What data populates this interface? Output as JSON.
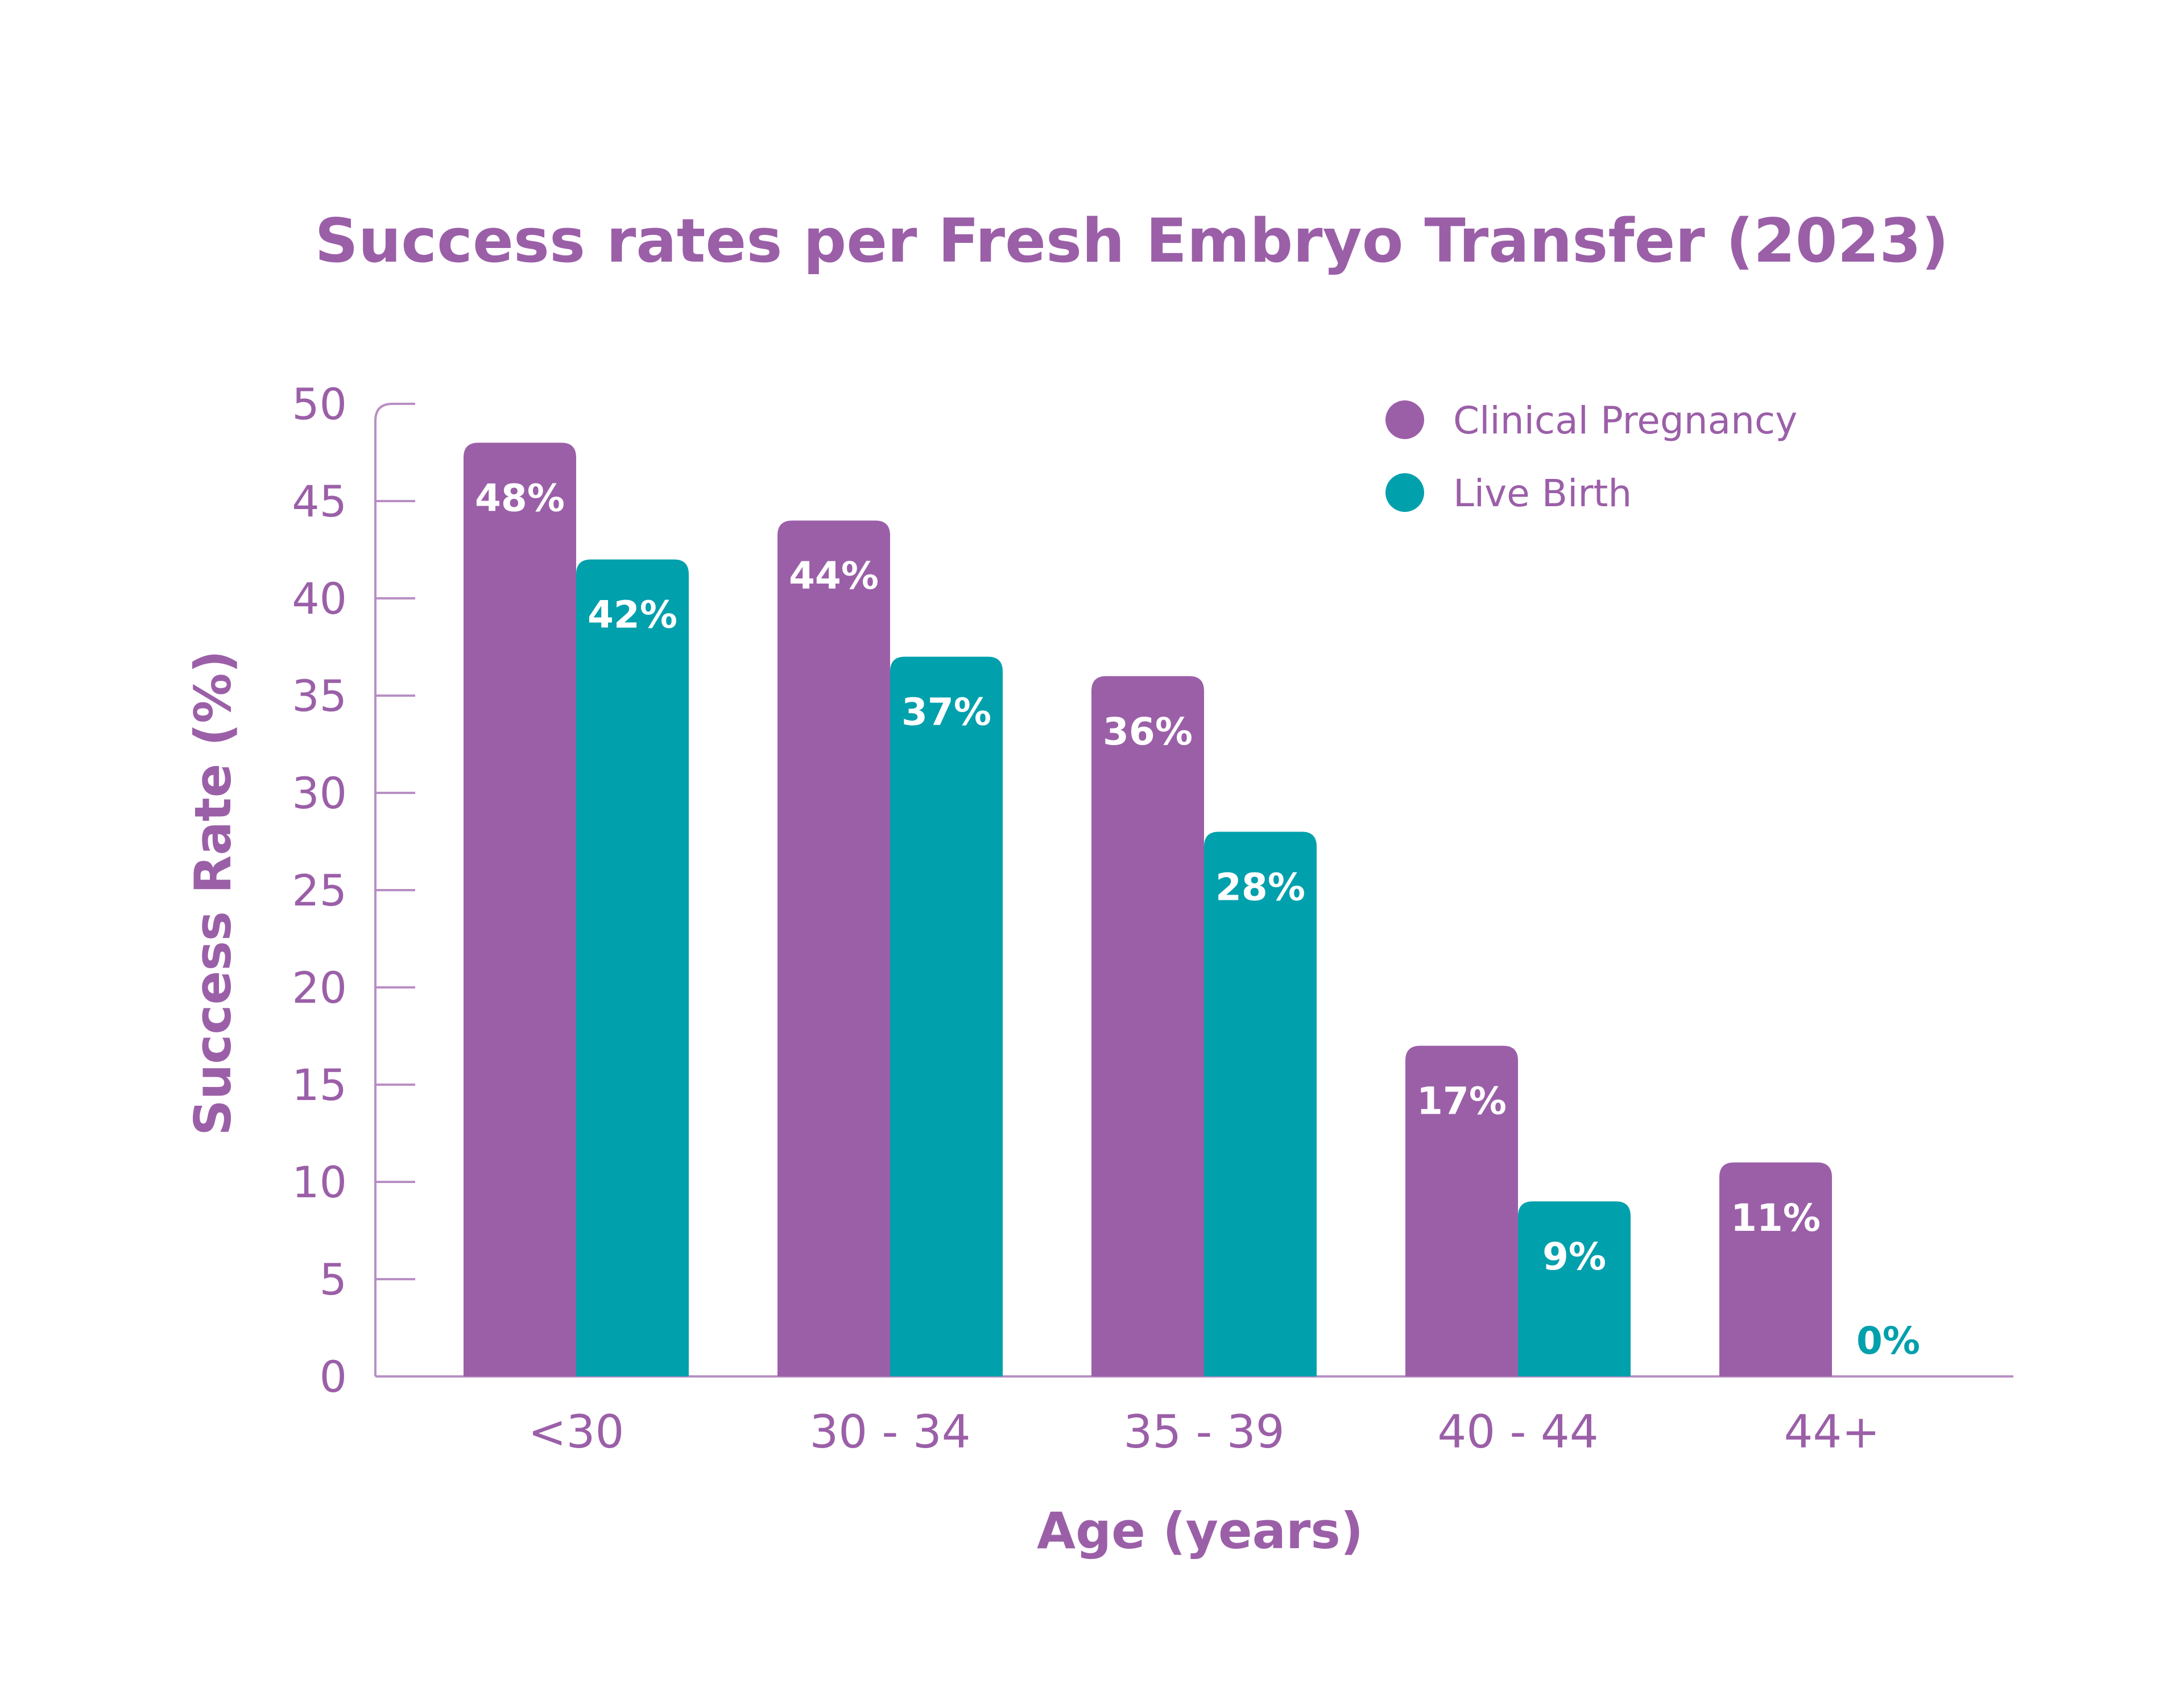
{
  "chart_data": {
    "type": "bar",
    "title": "Success rates per Fresh Embryo Transfer (2023)",
    "xlabel": "Age (years)",
    "ylabel": "Success Rate (%)",
    "ylim": [
      0,
      50
    ],
    "yticks": [
      0,
      5,
      10,
      15,
      20,
      25,
      30,
      35,
      40,
      45,
      50
    ],
    "categories": [
      "<30",
      "30 - 34",
      "35 - 39",
      "40 - 44",
      "44+"
    ],
    "series": [
      {
        "name": "Clinical Pregnancy",
        "color": "#9b5fa8",
        "values": [
          48,
          44,
          36,
          17,
          11
        ],
        "labels": [
          "48%",
          "44%",
          "36%",
          "17%",
          "11%"
        ]
      },
      {
        "name": "Live Birth",
        "color": "#00a0ac",
        "values": [
          42,
          37,
          28,
          9,
          0
        ],
        "labels": [
          "42%",
          "37%",
          "28%",
          "9%",
          "0%"
        ]
      }
    ],
    "legend_position": "top-right",
    "grid": false
  },
  "colors": {
    "text": "#9b5fa8",
    "axis": "#b88fc4",
    "bar_label": "#ffffff"
  }
}
